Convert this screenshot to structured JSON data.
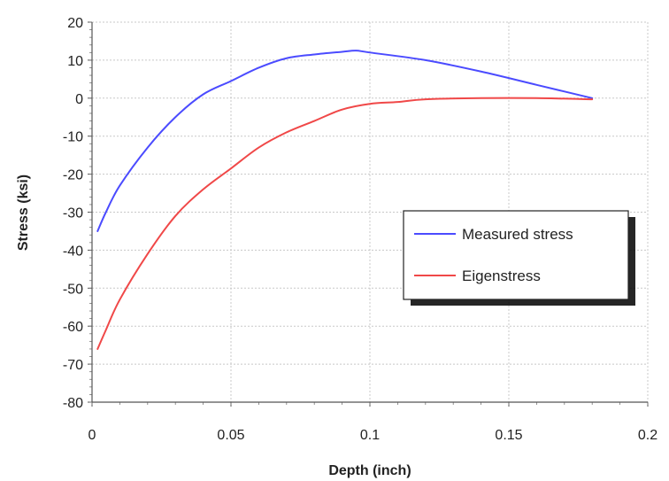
{
  "chart_data": {
    "type": "line",
    "title": "",
    "xlabel": "Depth (inch)",
    "ylabel": "Stress (ksi)",
    "xlim": [
      0,
      0.2
    ],
    "ylim": [
      -80,
      20
    ],
    "x_ticks": [
      "0",
      "0.05",
      "0.1",
      "0.15",
      "0.2"
    ],
    "y_ticks": [
      "20",
      "10",
      "0",
      "-10",
      "-20",
      "-30",
      "-40",
      "-50",
      "-60",
      "-70",
      "-80"
    ],
    "grid": true,
    "legend_position": "center-right",
    "series": [
      {
        "name": "Measured stress",
        "color": "#4b4bff",
        "x": [
          0.002,
          0.005,
          0.01,
          0.02,
          0.03,
          0.04,
          0.05,
          0.06,
          0.07,
          0.08,
          0.09,
          0.095,
          0.1,
          0.12,
          0.14,
          0.16,
          0.18
        ],
        "y": [
          -35,
          -30,
          -23,
          -13,
          -5,
          1,
          4.5,
          8,
          10.5,
          11.5,
          12.2,
          12.5,
          12,
          10,
          7,
          3.5,
          0
        ]
      },
      {
        "name": "Eigenstress",
        "color": "#f04848",
        "x": [
          0.002,
          0.005,
          0.01,
          0.02,
          0.03,
          0.04,
          0.05,
          0.06,
          0.07,
          0.08,
          0.09,
          0.1,
          0.11,
          0.12,
          0.14,
          0.16,
          0.18
        ],
        "y": [
          -66,
          -61,
          -53,
          -41,
          -31,
          -24,
          -18.5,
          -13,
          -9,
          -6,
          -3,
          -1.5,
          -1,
          -0.3,
          0,
          0,
          -0.3
        ]
      }
    ]
  }
}
